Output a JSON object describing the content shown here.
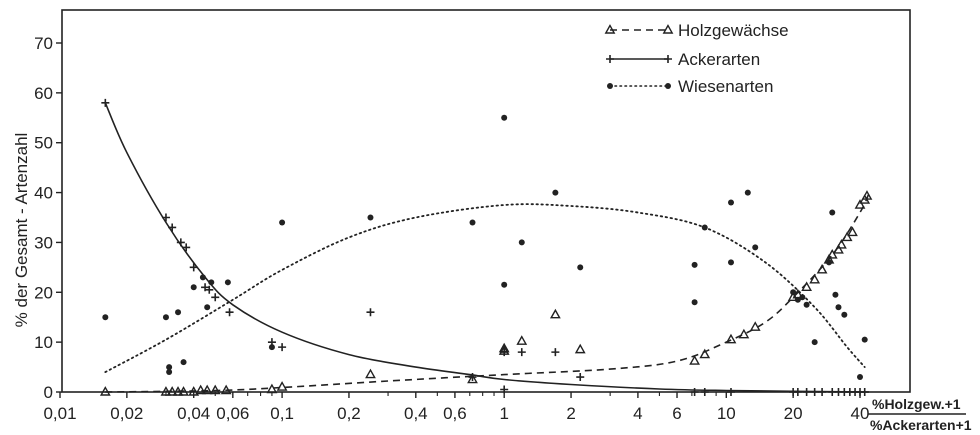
{
  "chart_data": {
    "type": "scatter",
    "title": "",
    "ylabel": "% der Gesamt - Artenzahl",
    "xlabel_numerator": "%Holzgew.+1",
    "xlabel_denominator": "%Ackerarten+1",
    "x_scale": "log",
    "xlim": [
      0.01,
      45
    ],
    "ylim": [
      0,
      76
    ],
    "grid": false,
    "legend_position": "top-right",
    "x_ticks": [
      {
        "value": 0.01,
        "label": "0,01"
      },
      {
        "value": 0.02,
        "label": "0,02"
      },
      {
        "value": 0.04,
        "label": "0,04"
      },
      {
        "value": 0.06,
        "label": "0,06"
      },
      {
        "value": 0.1,
        "label": "0,1"
      },
      {
        "value": 0.2,
        "label": "0,2"
      },
      {
        "value": 0.4,
        "label": "0,4"
      },
      {
        "value": 0.6,
        "label": "0,6"
      },
      {
        "value": 1,
        "label": "1"
      },
      {
        "value": 2,
        "label": "2"
      },
      {
        "value": 4,
        "label": "4"
      },
      {
        "value": 6,
        "label": "6"
      },
      {
        "value": 10,
        "label": "10"
      },
      {
        "value": 20,
        "label": "20"
      },
      {
        "value": 40,
        "label": "40"
      }
    ],
    "y_ticks": [
      {
        "value": 0,
        "label": "0"
      },
      {
        "value": 10,
        "label": "10"
      },
      {
        "value": 20,
        "label": "20"
      },
      {
        "value": 30,
        "label": "30"
      },
      {
        "value": 40,
        "label": "40"
      },
      {
        "value": 50,
        "label": "50"
      },
      {
        "value": 60,
        "label": "60"
      },
      {
        "value": 70,
        "label": "70"
      }
    ],
    "series": [
      {
        "name": "Holzgewächse",
        "marker": "triangle",
        "line": "dashed",
        "points": [
          [
            0.016,
            0
          ],
          [
            0.03,
            0
          ],
          [
            0.032,
            0
          ],
          [
            0.034,
            0
          ],
          [
            0.036,
            0
          ],
          [
            0.04,
            0
          ],
          [
            0.043,
            0.3
          ],
          [
            0.046,
            0.3
          ],
          [
            0.05,
            0.3
          ],
          [
            0.056,
            0.3
          ],
          [
            0.09,
            0.5
          ],
          [
            0.1,
            1
          ],
          [
            0.25,
            3.5
          ],
          [
            0.72,
            2.5
          ],
          [
            1.0,
            8.2
          ],
          [
            1.0,
            8.7
          ],
          [
            1.2,
            10.2
          ],
          [
            1.7,
            15.5
          ],
          [
            2.2,
            8.5
          ],
          [
            7.2,
            6.2
          ],
          [
            8.0,
            7.5
          ],
          [
            10.5,
            10.5
          ],
          [
            12.0,
            11.5
          ],
          [
            13.5,
            13
          ],
          [
            20,
            19
          ],
          [
            21,
            19.5
          ],
          [
            23,
            21
          ],
          [
            25,
            22.5
          ],
          [
            27,
            24.5
          ],
          [
            29,
            26.5
          ],
          [
            30,
            27.5
          ],
          [
            32,
            28.5
          ],
          [
            33,
            29.5
          ],
          [
            35,
            31
          ],
          [
            37,
            32
          ],
          [
            40,
            37.5
          ],
          [
            42,
            38.5
          ],
          [
            43,
            39.3
          ]
        ],
        "curve": [
          [
            0.016,
            0
          ],
          [
            0.05,
            0.3
          ],
          [
            0.1,
            0.9
          ],
          [
            0.3,
            2.2
          ],
          [
            1.0,
            3.5
          ],
          [
            3.0,
            4.6
          ],
          [
            6.0,
            6.2
          ],
          [
            10,
            10
          ],
          [
            15,
            14
          ],
          [
            20,
            19
          ],
          [
            30,
            27.5
          ],
          [
            40,
            36
          ],
          [
            44,
            40
          ]
        ]
      },
      {
        "name": "Ackerarten",
        "marker": "plus",
        "line": "solid",
        "points": [
          [
            0.016,
            58
          ],
          [
            0.03,
            35
          ],
          [
            0.032,
            33
          ],
          [
            0.035,
            30
          ],
          [
            0.037,
            29
          ],
          [
            0.04,
            25
          ],
          [
            0.045,
            21
          ],
          [
            0.047,
            20.5
          ],
          [
            0.05,
            19
          ],
          [
            0.058,
            16
          ],
          [
            0.09,
            10
          ],
          [
            0.1,
            9
          ],
          [
            0.25,
            16
          ],
          [
            0.72,
            3
          ],
          [
            1.0,
            8
          ],
          [
            1.2,
            8
          ],
          [
            1.7,
            8
          ],
          [
            2.2,
            3
          ],
          [
            1.0,
            0.5
          ],
          [
            7.2,
            0
          ],
          [
            8.0,
            0
          ],
          [
            10.5,
            0
          ],
          [
            20,
            0
          ],
          [
            21,
            0
          ],
          [
            23,
            0
          ],
          [
            25,
            0
          ],
          [
            27,
            0
          ],
          [
            30,
            0
          ],
          [
            32,
            0
          ],
          [
            34,
            0
          ],
          [
            36,
            0
          ],
          [
            38,
            0
          ],
          [
            40,
            0
          ],
          [
            42,
            0
          ]
        ],
        "curve": [
          [
            0.016,
            58
          ],
          [
            0.02,
            48
          ],
          [
            0.03,
            34
          ],
          [
            0.045,
            23
          ],
          [
            0.06,
            17.5
          ],
          [
            0.1,
            12
          ],
          [
            0.2,
            7.5
          ],
          [
            0.4,
            5
          ],
          [
            0.7,
            3.5
          ],
          [
            1.0,
            2.5
          ],
          [
            2.0,
            1.5
          ],
          [
            5.0,
            0.6
          ],
          [
            10,
            0.3
          ],
          [
            44,
            0
          ]
        ]
      },
      {
        "name": "Wiesenarten",
        "marker": "dot",
        "line": "dotted",
        "points": [
          [
            0.016,
            15
          ],
          [
            0.03,
            15
          ],
          [
            0.031,
            5
          ],
          [
            0.031,
            4
          ],
          [
            0.034,
            16
          ],
          [
            0.036,
            6
          ],
          [
            0.04,
            21
          ],
          [
            0.044,
            23
          ],
          [
            0.046,
            17
          ],
          [
            0.048,
            22
          ],
          [
            0.057,
            22
          ],
          [
            0.09,
            9
          ],
          [
            0.1,
            34
          ],
          [
            0.25,
            35
          ],
          [
            0.72,
            34
          ],
          [
            1.0,
            55
          ],
          [
            1.0,
            21.5
          ],
          [
            1.2,
            30
          ],
          [
            1.7,
            40
          ],
          [
            2.2,
            25
          ],
          [
            7.2,
            25.5
          ],
          [
            7.2,
            18
          ],
          [
            8.0,
            33
          ],
          [
            10.5,
            38
          ],
          [
            10.5,
            26
          ],
          [
            12.5,
            40
          ],
          [
            13.5,
            29
          ],
          [
            20,
            20
          ],
          [
            21,
            18.5
          ],
          [
            22,
            19
          ],
          [
            23,
            17.5
          ],
          [
            25,
            10
          ],
          [
            29,
            26
          ],
          [
            30,
            36
          ],
          [
            31,
            19.5
          ],
          [
            32,
            17
          ],
          [
            34,
            15.5
          ],
          [
            40,
            3
          ],
          [
            42,
            10.5
          ]
        ],
        "curve": [
          [
            0.016,
            4
          ],
          [
            0.03,
            10.5
          ],
          [
            0.06,
            18.5
          ],
          [
            0.1,
            24.5
          ],
          [
            0.2,
            31
          ],
          [
            0.4,
            35
          ],
          [
            1.0,
            37.5
          ],
          [
            2.0,
            37.3
          ],
          [
            4.0,
            36
          ],
          [
            8.0,
            33
          ],
          [
            15,
            26
          ],
          [
            25,
            17
          ],
          [
            35,
            9
          ],
          [
            42,
            5
          ]
        ]
      }
    ]
  }
}
